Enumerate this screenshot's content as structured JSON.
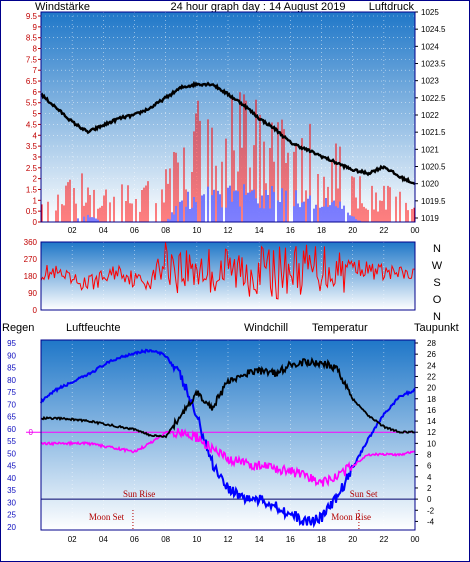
{
  "header": {
    "wind_label": "Windstärke",
    "title": "24 hour graph day : 14 August 2019",
    "pressure_label": "Luftdruck"
  },
  "colors": {
    "panel_top": "#1f77c8",
    "panel_bottom": "#ffffff",
    "wind": "#ff0000",
    "gust": "#0000ff",
    "pressure": "#000000",
    "direction": "#ff0000",
    "humidity": "#0000ff",
    "dewpoint": "#ff00ff",
    "temperature": "#000000",
    "windchill": "#008000",
    "zero_line": "#ff00ff",
    "horizon_line": "#00006b",
    "annotation": "#b00000"
  },
  "chart_data": [
    {
      "type": "line",
      "panel": "wind_pressure",
      "x_ticks": [
        "02",
        "04",
        "06",
        "08",
        "10",
        "12",
        "14",
        "16",
        "18",
        "20",
        "22",
        "00"
      ],
      "xlim": [
        0,
        24
      ],
      "left_axis": {
        "title": "Windstärke",
        "ticks": [
          "0",
          "0.5",
          "1",
          "1.5",
          "2",
          "2.5",
          "3",
          "3.5",
          "4",
          "4.5",
          "5",
          "5.5",
          "6",
          "6.5",
          "7",
          "7.5",
          "8",
          "8.5",
          "9",
          "9.5"
        ],
        "ylim": [
          0,
          9.5
        ]
      },
      "right_axis": {
        "title": "Luftdruck",
        "ticks": [
          "1019",
          "1019.5",
          "1020",
          "1020.5",
          "1021",
          "1021.5",
          "1022",
          "1022.5",
          "1023",
          "1023.5",
          "1024",
          "1024.5",
          "1025"
        ],
        "ylim": [
          1019,
          1025
        ]
      },
      "series": [
        {
          "name": "Windstärke",
          "axis": "left",
          "x": [
            0,
            1,
            2,
            3,
            4,
            5,
            6,
            7,
            8,
            9,
            10,
            11,
            12,
            13,
            14,
            15,
            16,
            17,
            18,
            19,
            20,
            21,
            22,
            23,
            24
          ],
          "y": [
            0.5,
            0.8,
            1.2,
            1.4,
            1.0,
            1.3,
            1.0,
            1.3,
            1.6,
            2.3,
            3.1,
            3.4,
            3.6,
            3.7,
            3.6,
            3.3,
            3.1,
            3.0,
            2.6,
            2.1,
            1.3,
            1.1,
            1.0,
            0.8,
            0.5
          ]
        },
        {
          "name": "Böen",
          "axis": "left",
          "x": [
            0,
            1,
            2,
            3,
            4,
            5,
            6,
            7,
            8,
            9,
            10,
            11,
            12,
            13,
            14,
            15,
            16,
            17,
            18,
            19,
            20,
            21,
            22,
            23,
            24
          ],
          "y": [
            0,
            0,
            0,
            0.3,
            0,
            0,
            0,
            0,
            0,
            0.8,
            1.2,
            1.2,
            1.2,
            1.2,
            1.2,
            1.1,
            1.1,
            1.0,
            1.0,
            0.8,
            0.2,
            0,
            0,
            0,
            0
          ]
        },
        {
          "name": "Luftdruck",
          "axis": "right",
          "x": [
            0,
            1,
            2,
            3,
            4,
            5,
            6,
            7,
            8,
            9,
            10,
            11,
            12,
            13,
            14,
            15,
            16,
            17,
            18,
            19,
            20,
            21,
            22,
            23,
            24
          ],
          "y": [
            1022.6,
            1022.2,
            1021.8,
            1021.5,
            1021.7,
            1021.9,
            1022.0,
            1022.2,
            1022.5,
            1022.8,
            1022.9,
            1022.9,
            1022.6,
            1022.3,
            1021.9,
            1021.6,
            1021.2,
            1021.0,
            1020.8,
            1020.6,
            1020.4,
            1020.3,
            1020.5,
            1020.2,
            1020.0
          ]
        }
      ]
    },
    {
      "type": "line",
      "panel": "wind_direction",
      "xlim": [
        0,
        24
      ],
      "left_axis": {
        "ticks": [
          "0",
          "90",
          "180",
          "270",
          "360"
        ],
        "ylim": [
          0,
          360
        ]
      },
      "right_axis": {
        "ticks": [
          "N",
          "W",
          "S",
          "O",
          "N"
        ]
      },
      "series": [
        {
          "name": "Windrichtung",
          "axis": "left",
          "x": [
            0,
            1,
            2,
            3,
            4,
            5,
            6,
            7,
            8,
            9,
            10,
            11,
            12,
            13,
            14,
            15,
            16,
            17,
            18,
            19,
            20,
            21,
            22,
            23,
            24
          ],
          "y": [
            200,
            190,
            150,
            140,
            170,
            210,
            160,
            150,
            280,
            210,
            230,
            200,
            210,
            200,
            220,
            190,
            220,
            210,
            230,
            220,
            240,
            210,
            200,
            190,
            180
          ]
        }
      ]
    },
    {
      "type": "line",
      "panel": "temperature_humidity",
      "legend": [
        "Regen",
        "Luftfeuchte",
        "Windchill",
        "Temperatur",
        "Taupunkt"
      ],
      "x_ticks": [
        "02",
        "04",
        "06",
        "08",
        "10",
        "12",
        "14",
        "16",
        "18",
        "20",
        "22",
        "00"
      ],
      "xlim": [
        0,
        24
      ],
      "left_axis": {
        "title": "Luftfeuchte",
        "ticks": [
          "20",
          "25",
          "30",
          "35",
          "40",
          "45",
          "50",
          "55",
          "60",
          "65",
          "70",
          "75",
          "80",
          "85",
          "90",
          "95"
        ],
        "ylim": [
          20,
          95
        ]
      },
      "right_axis": {
        "title": "Temperatur",
        "ticks": [
          "-4",
          "-2",
          "0",
          "2",
          "4",
          "6",
          "8",
          "10",
          "12",
          "14",
          "16",
          "18",
          "20",
          "22",
          "24",
          "26",
          "28"
        ],
        "ylim": [
          -5,
          28
        ]
      },
      "rain_marker": "0",
      "annotations": [
        "Sun Rise",
        "Moon Set",
        "Sun Set",
        "Moon Rise"
      ],
      "series": [
        {
          "name": "Luftfeuchte",
          "axis": "left",
          "x": [
            0,
            1,
            2,
            3,
            4,
            5,
            6,
            7,
            8,
            9,
            10,
            11,
            12,
            13,
            14,
            15,
            16,
            17,
            18,
            19,
            20,
            21,
            22,
            23,
            24
          ],
          "y": [
            71,
            76,
            79,
            82,
            86,
            89,
            91,
            92,
            90,
            81,
            65,
            46,
            36,
            32,
            31,
            29,
            25,
            22,
            24,
            32,
            44,
            56,
            66,
            73,
            76
          ]
        },
        {
          "name": "Taupunkt",
          "axis": "right",
          "x": [
            0,
            1,
            2,
            3,
            4,
            5,
            6,
            7,
            8,
            9,
            10,
            11,
            12,
            13,
            14,
            15,
            16,
            17,
            18,
            19,
            20,
            21,
            22,
            23,
            24
          ],
          "y": [
            10,
            10,
            10,
            10,
            9.5,
            9,
            8.5,
            10,
            12,
            12,
            11,
            9,
            7,
            6.5,
            6,
            5.5,
            5,
            4,
            3,
            4,
            6,
            8,
            8,
            8,
            8.5
          ]
        },
        {
          "name": "Temperatur",
          "axis": "right",
          "x": [
            0,
            1,
            2,
            3,
            4,
            5,
            6,
            7,
            8,
            9,
            10,
            11,
            12,
            13,
            14,
            15,
            16,
            17,
            18,
            19,
            20,
            21,
            22,
            23,
            24
          ],
          "y": [
            14.5,
            14.5,
            14.3,
            14,
            13.5,
            13,
            12.5,
            11.5,
            11.2,
            15,
            19,
            16.5,
            21,
            22.5,
            23,
            22.5,
            24,
            24.5,
            24.5,
            23.5,
            18,
            15,
            13,
            12,
            12
          ]
        }
      ]
    }
  ]
}
